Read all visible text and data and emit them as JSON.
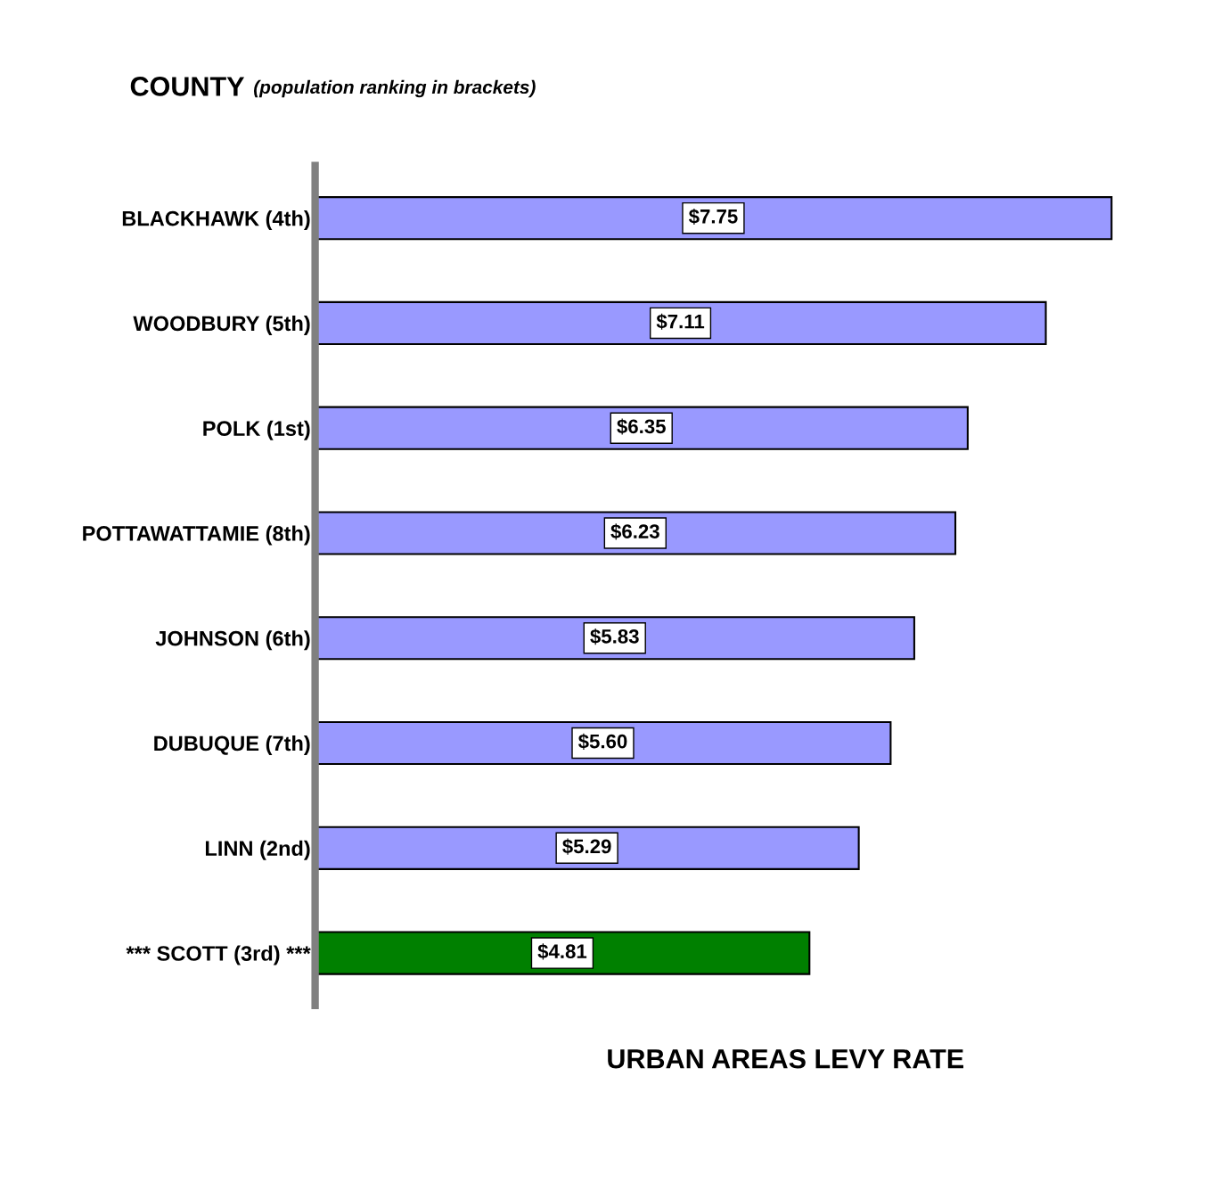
{
  "chart_data": {
    "type": "bar",
    "orientation": "horizontal",
    "title": "COUNTY",
    "subtitle": "(population ranking in brackets)",
    "xlabel": "URBAN AREAS LEVY RATE",
    "categories": [
      "BLACKHAWK (4th)",
      "WOODBURY (5th)",
      "POLK (1st)",
      "POTTAWATTAMIE (8th)",
      "JOHNSON (6th)",
      "DUBUQUE (7th)",
      "LINN (2nd)",
      "*** SCOTT (3rd) ***"
    ],
    "values": [
      7.75,
      7.11,
      6.35,
      6.23,
      5.83,
      5.6,
      5.29,
      4.81
    ],
    "value_labels": [
      "$7.75",
      "$7.11",
      "$6.35",
      "$6.23",
      "$5.83",
      "$5.60",
      "$5.29",
      "$4.81"
    ],
    "colors": [
      "#9999ff",
      "#9999ff",
      "#9999ff",
      "#9999ff",
      "#9999ff",
      "#9999ff",
      "#9999ff",
      "#008000"
    ],
    "tick_labels": "y",
    "grid": false,
    "legend": false
  }
}
